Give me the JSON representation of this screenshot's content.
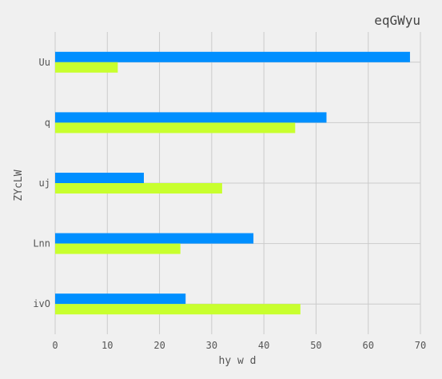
{
  "chart_data": {
    "type": "bar",
    "orientation": "horizontal",
    "title": "eqGWyu",
    "xlabel": "hy w d",
    "ylabel": "ZYcLW",
    "categories": [
      "Uu",
      "q",
      "uj",
      "Lnn",
      "ivO"
    ],
    "series": [
      {
        "color": "#008fff",
        "values": [
          68,
          52,
          17,
          38,
          25
        ]
      },
      {
        "color": "#c8ff2e",
        "values": [
          12,
          46,
          32,
          24,
          47
        ]
      }
    ],
    "xlim": [
      0,
      70
    ],
    "xticks": [
      0,
      10,
      20,
      30,
      40,
      50,
      60,
      70
    ],
    "grid": true,
    "legend": "none",
    "background_color": "#f0f0f0",
    "grid_color": "#cbcbcb"
  }
}
